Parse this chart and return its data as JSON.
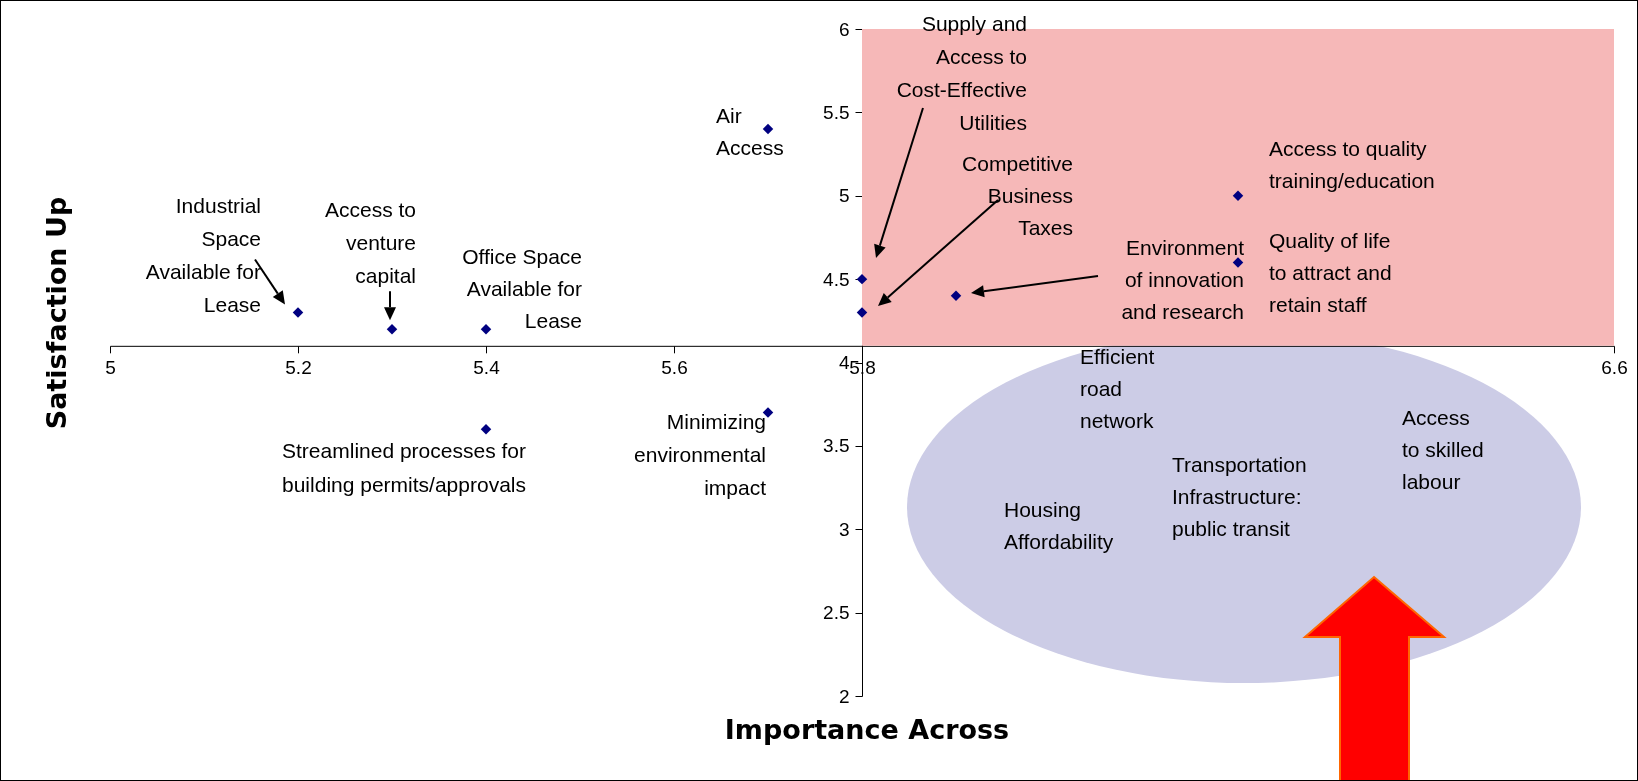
{
  "chart_data": {
    "type": "scatter",
    "xlabel": "Importance Across",
    "ylabel": "Satisfaction Up",
    "x": [
      5.2,
      5.3,
      5.4,
      5.4,
      5.7,
      5.7,
      5.8,
      5.8,
      5.9,
      6.2,
      6.2
    ],
    "series": [
      {
        "color": "#000080",
        "values": [
          4.3,
          4.2,
          4.2,
          3.6,
          5.4,
          3.7,
          4.5,
          4.3,
          4.4,
          5.0,
          4.6
        ]
      }
    ],
    "xlim": [
      5,
      6.6
    ],
    "ylim": [
      2,
      6
    ],
    "xticks": [
      5,
      5.2,
      5.4,
      5.6,
      5.8,
      6.6
    ],
    "yticks": [
      2,
      2.5,
      3,
      3.5,
      4,
      4.5,
      5,
      5.5,
      6
    ],
    "marker": "diamond",
    "bands": [
      {
        "axis": "x",
        "from": 5.8,
        "to": 6.6,
        "color": "#f6b8b8"
      }
    ],
    "annotations": [
      {
        "text": "Industrial Space Available for Lease",
        "x": 5.2,
        "y": 4.3
      },
      {
        "text": "Access to venture capital",
        "x": 5.3,
        "y": 4.2
      },
      {
        "text": "Office Space Available for Lease",
        "x": 5.4,
        "y": 4.2
      },
      {
        "text": "Streamlined processes for building permits/approvals",
        "x": 5.4,
        "y": 3.6
      },
      {
        "text": "Air Access",
        "x": 5.7,
        "y": 5.4
      },
      {
        "text": "Minimizing environmental impact",
        "x": 5.7,
        "y": 3.7
      },
      "Supply and Access to Cost-Effective Utilities",
      "Competitive Business Taxes",
      "Environment of innovation and research",
      {
        "text": "Access to quality training/education",
        "x": 6.2,
        "y": 5.0
      },
      {
        "text": "Quality of life to attract and retain staff",
        "x": 6.2,
        "y": 4.6
      },
      "Efficient road network",
      "Housing Affordability",
      "Transportation Infrastructure: public transit",
      "Access to skilled labour"
    ]
  }
}
